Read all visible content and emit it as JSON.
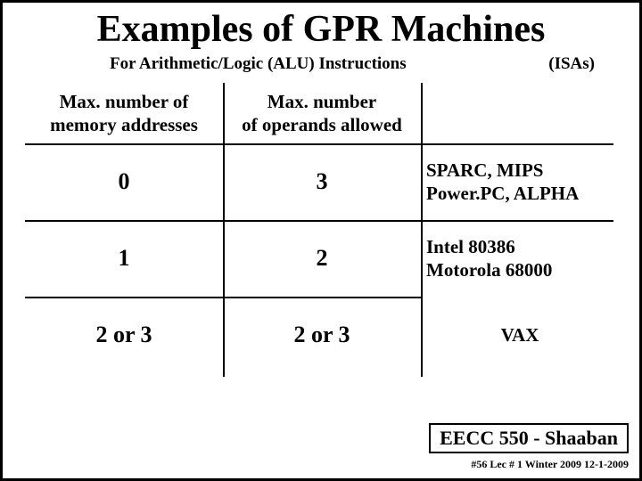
{
  "title": "Examples of GPR Machines",
  "subtitle": "For Arithmetic/Logic (ALU) Instructions",
  "isas_label": "(ISAs)",
  "headers": {
    "col1_line1": "Max. number of",
    "col1_line2": "memory addresses",
    "col2_line1": "Max. number",
    "col2_line2": "of operands allowed"
  },
  "rows": [
    {
      "mem": "0",
      "ops": "3",
      "ex_line1": "SPARC, MIPS",
      "ex_line2": "Power.PC, ALPHA"
    },
    {
      "mem": "1",
      "ops": "2",
      "ex_line1": "Intel 80386",
      "ex_line2": "Motorola 68000"
    },
    {
      "mem": "2 or 3",
      "ops": "2 or 3",
      "ex_line1": "VAX",
      "ex_line2": ""
    }
  ],
  "footer_course": "EECC 550 - Shaaban",
  "footer_small": "#56  Lec # 1  Winter 2009  12-1-2009"
}
